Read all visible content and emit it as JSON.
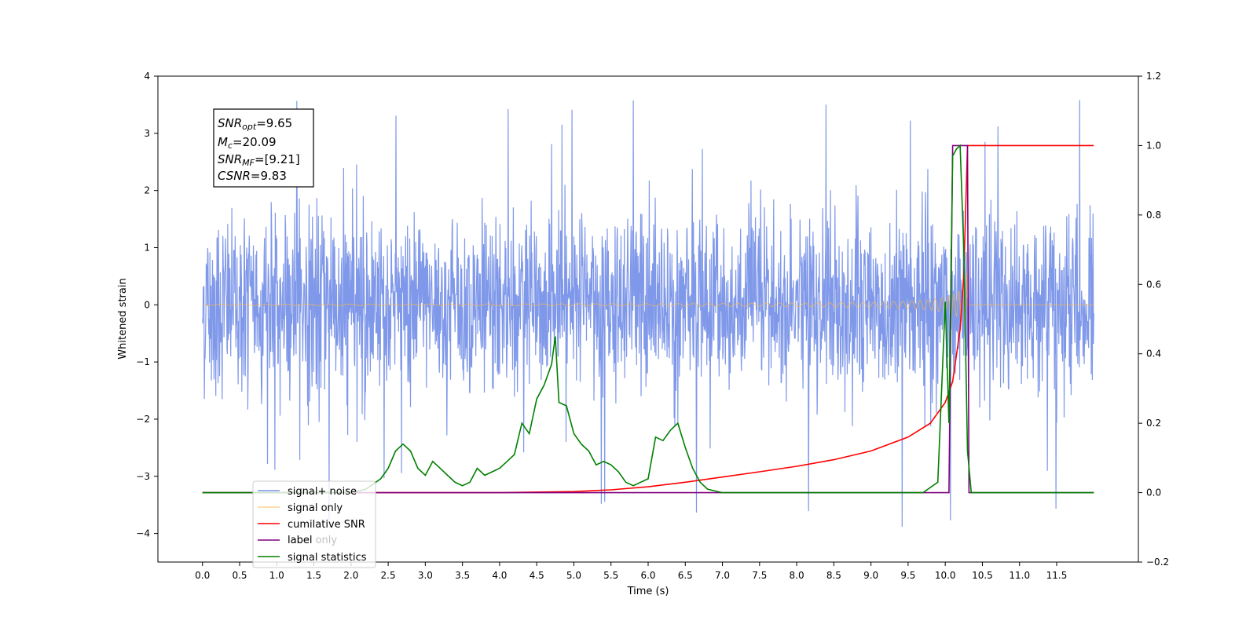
{
  "chart_data": {
    "type": "line",
    "xlabel": "Time (s)",
    "ylabel": "Whitened strain",
    "xlim": [
      -0.6,
      12.6
    ],
    "ylim": [
      -4.5,
      4
    ],
    "y2lim": [
      -0.2,
      1.2
    ],
    "grid": false,
    "legend_position": "lower-left",
    "x_ticks": [
      0.0,
      0.5,
      1.0,
      1.5,
      2.0,
      2.5,
      3.0,
      3.5,
      4.0,
      4.5,
      5.0,
      5.5,
      6.0,
      6.5,
      7.0,
      7.5,
      8.0,
      8.5,
      9.0,
      9.5,
      10.0,
      10.5,
      11.0,
      11.5
    ],
    "x_tick_labels": [
      "0.0",
      "0.5",
      "1.0",
      "1.5",
      "2.0",
      "2.5",
      "3.0",
      "3.5",
      "4.0",
      "4.5",
      "5.0",
      "5.5",
      "6.0",
      "6.5",
      "7.0",
      "7.5",
      "8.0",
      "8.5",
      "9.0",
      "9.5",
      "10.0",
      "10.5",
      "11.0",
      "11.5"
    ],
    "y_ticks": [
      4,
      3,
      2,
      1,
      0,
      -1,
      -2,
      -3,
      -4
    ],
    "y_tick_labels": [
      "4",
      "3",
      "2",
      "1",
      "0",
      "−1",
      "−2",
      "−3",
      "−4"
    ],
    "y2_ticks": [
      1.2,
      1.0,
      0.8,
      0.6,
      0.4,
      0.2,
      0.0,
      -0.2
    ],
    "y2_tick_labels": [
      "1.2",
      "1.0",
      "0.8",
      "0.6",
      "0.4",
      "0.2",
      "0.0",
      "−0.2"
    ],
    "annotation": {
      "lines": [
        {
          "main": "SNR",
          "sub": "opt",
          "rest": "=9.65"
        },
        {
          "main": "M",
          "sub": "c",
          "rest": "=20.09"
        },
        {
          "main": "SNR",
          "sub": "MF",
          "rest": "=[9.21]"
        },
        {
          "main": "CSNR",
          "sub": "",
          "rest": "=9.83"
        }
      ]
    },
    "series": [
      {
        "name": "signal+ noise",
        "axis": "left",
        "color": "#7892e8",
        "kind": "noise",
        "x_range": [
          0.0,
          12.0
        ],
        "amplitude_sigma": 0.8,
        "approx_extremes": {
          "max": 3.6,
          "min": -4.1
        }
      },
      {
        "name": "signal only",
        "axis": "left",
        "color": "#ffb84a",
        "kind": "chirp",
        "x_range": [
          0.0,
          12.0
        ],
        "merger_time": 10.3,
        "peak_amplitude": 1.5
      },
      {
        "name": "cumilative SNR",
        "axis": "right",
        "color": "#ff0000",
        "x": [
          0.0,
          4.0,
          5.0,
          5.5,
          6.0,
          6.5,
          7.0,
          7.5,
          8.0,
          8.5,
          9.0,
          9.5,
          9.8,
          10.0,
          10.1,
          10.2,
          10.25,
          10.3,
          11.0,
          11.5,
          12.0
        ],
        "y": [
          0.0,
          0.0,
          0.003,
          0.008,
          0.017,
          0.03,
          0.045,
          0.06,
          0.076,
          0.095,
          0.12,
          0.16,
          0.2,
          0.26,
          0.32,
          0.47,
          0.63,
          1.0,
          1.0,
          1.0,
          1.0
        ]
      },
      {
        "name": "label",
        "axis": "right",
        "color": "#800080",
        "x": [
          0.0,
          10.05,
          10.1,
          10.3,
          10.32,
          12.0
        ],
        "y": [
          0.0,
          0.0,
          1.0,
          1.0,
          0.0,
          0.0
        ]
      },
      {
        "name": "label only",
        "axis": "right",
        "color": "#000000",
        "legend_only": true
      },
      {
        "name": "signal statistics",
        "axis": "right",
        "color": "#008000",
        "x": [
          0.0,
          1.0,
          2.0,
          2.2,
          2.4,
          2.5,
          2.6,
          2.7,
          2.8,
          2.9,
          3.0,
          3.1,
          3.2,
          3.3,
          3.4,
          3.5,
          3.6,
          3.7,
          3.8,
          3.9,
          4.0,
          4.1,
          4.2,
          4.3,
          4.4,
          4.5,
          4.6,
          4.7,
          4.75,
          4.8,
          4.9,
          5.0,
          5.1,
          5.2,
          5.3,
          5.4,
          5.5,
          5.6,
          5.7,
          5.8,
          5.9,
          6.0,
          6.1,
          6.2,
          6.3,
          6.4,
          6.5,
          6.6,
          6.7,
          6.8,
          7.0,
          7.2,
          8.0,
          9.0,
          9.3,
          9.5,
          9.7,
          9.9,
          10.0,
          10.05,
          10.1,
          10.15,
          10.2,
          10.25,
          10.3,
          10.35,
          11.0,
          12.0
        ],
        "y": [
          0.0,
          0.0,
          0.0,
          0.01,
          0.04,
          0.07,
          0.12,
          0.14,
          0.12,
          0.07,
          0.05,
          0.09,
          0.07,
          0.05,
          0.03,
          0.02,
          0.03,
          0.07,
          0.05,
          0.06,
          0.07,
          0.09,
          0.11,
          0.2,
          0.17,
          0.27,
          0.31,
          0.37,
          0.45,
          0.26,
          0.25,
          0.17,
          0.14,
          0.12,
          0.08,
          0.09,
          0.08,
          0.06,
          0.03,
          0.02,
          0.03,
          0.04,
          0.16,
          0.15,
          0.18,
          0.2,
          0.13,
          0.07,
          0.03,
          0.01,
          0.0,
          0.0,
          0.0,
          0.0,
          0.0,
          0.0,
          0.0,
          0.03,
          0.55,
          0.2,
          0.97,
          0.99,
          1.0,
          0.7,
          0.12,
          0.0,
          0.0,
          0.0
        ]
      }
    ]
  }
}
